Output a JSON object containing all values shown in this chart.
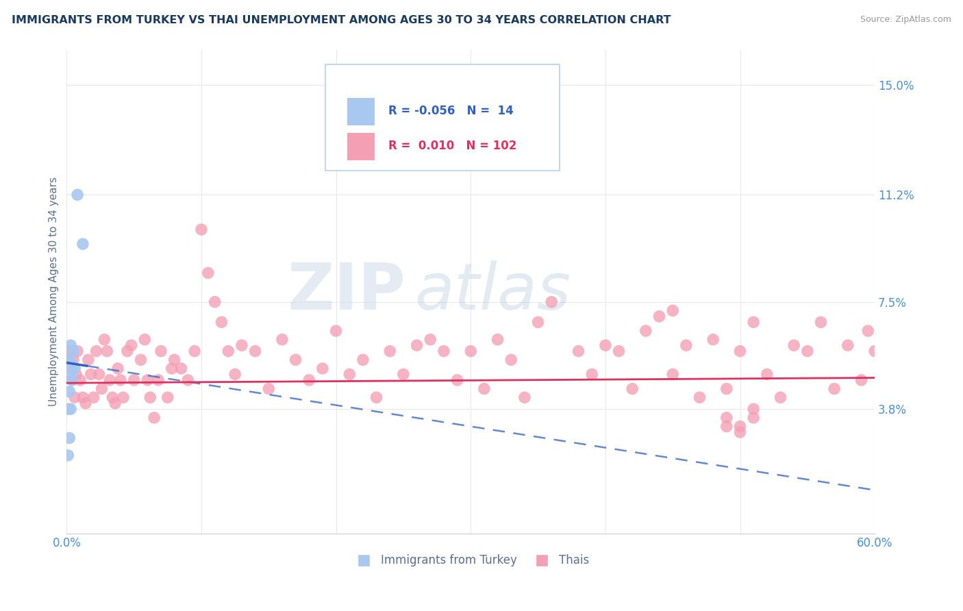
{
  "title": "IMMIGRANTS FROM TURKEY VS THAI UNEMPLOYMENT AMONG AGES 30 TO 34 YEARS CORRELATION CHART",
  "source": "Source: ZipAtlas.com",
  "ylabel": "Unemployment Among Ages 30 to 34 years",
  "xlim": [
    0.0,
    0.6
  ],
  "ylim": [
    -0.005,
    0.162
  ],
  "xtick_labels": [
    "0.0%",
    "",
    "",
    "",
    "",
    "",
    "60.0%"
  ],
  "xtick_values": [
    0.0,
    0.1,
    0.2,
    0.3,
    0.4,
    0.5,
    0.6
  ],
  "ytick_right_labels": [
    "3.8%",
    "7.5%",
    "11.2%",
    "15.0%"
  ],
  "ytick_right_values": [
    0.038,
    0.075,
    0.112,
    0.15
  ],
  "grid_color": "#e8e8e8",
  "background_color": "#ffffff",
  "turkey_color": "#a8c8f0",
  "thai_color": "#f4a0b4",
  "turkey_line_color": "#3060c0",
  "thai_line_color": "#e03060",
  "R_turkey": -0.056,
  "N_turkey": 14,
  "R_thai": 0.01,
  "N_thai": 102,
  "turkey_scatter_x": [
    0.008,
    0.012,
    0.003,
    0.005,
    0.002,
    0.004,
    0.006,
    0.003,
    0.004,
    0.002,
    0.003,
    0.001,
    0.002,
    0.001
  ],
  "turkey_scatter_y": [
    0.112,
    0.095,
    0.06,
    0.058,
    0.055,
    0.053,
    0.052,
    0.05,
    0.048,
    0.044,
    0.038,
    0.038,
    0.028,
    0.022
  ],
  "thai_scatter_x": [
    0.001,
    0.002,
    0.003,
    0.004,
    0.005,
    0.006,
    0.007,
    0.008,
    0.01,
    0.012,
    0.014,
    0.016,
    0.018,
    0.02,
    0.022,
    0.024,
    0.026,
    0.028,
    0.03,
    0.032,
    0.034,
    0.036,
    0.038,
    0.04,
    0.042,
    0.045,
    0.048,
    0.05,
    0.055,
    0.058,
    0.06,
    0.062,
    0.065,
    0.068,
    0.07,
    0.075,
    0.078,
    0.08,
    0.085,
    0.09,
    0.095,
    0.1,
    0.105,
    0.11,
    0.115,
    0.12,
    0.125,
    0.13,
    0.14,
    0.15,
    0.16,
    0.17,
    0.18,
    0.19,
    0.2,
    0.21,
    0.22,
    0.23,
    0.24,
    0.25,
    0.26,
    0.27,
    0.28,
    0.29,
    0.3,
    0.31,
    0.32,
    0.33,
    0.34,
    0.35,
    0.36,
    0.38,
    0.39,
    0.4,
    0.41,
    0.42,
    0.43,
    0.44,
    0.45,
    0.46,
    0.47,
    0.48,
    0.49,
    0.5,
    0.51,
    0.52,
    0.53,
    0.54,
    0.55,
    0.56,
    0.57,
    0.58,
    0.59,
    0.595,
    0.6,
    0.49,
    0.5,
    0.51,
    0.49,
    0.5,
    0.51,
    0.45
  ],
  "thai_scatter_y": [
    0.055,
    0.058,
    0.052,
    0.048,
    0.055,
    0.042,
    0.05,
    0.058,
    0.048,
    0.042,
    0.04,
    0.055,
    0.05,
    0.042,
    0.058,
    0.05,
    0.045,
    0.062,
    0.058,
    0.048,
    0.042,
    0.04,
    0.052,
    0.048,
    0.042,
    0.058,
    0.06,
    0.048,
    0.055,
    0.062,
    0.048,
    0.042,
    0.035,
    0.048,
    0.058,
    0.042,
    0.052,
    0.055,
    0.052,
    0.048,
    0.058,
    0.1,
    0.085,
    0.075,
    0.068,
    0.058,
    0.05,
    0.06,
    0.058,
    0.045,
    0.062,
    0.055,
    0.048,
    0.052,
    0.065,
    0.05,
    0.055,
    0.042,
    0.058,
    0.05,
    0.06,
    0.062,
    0.058,
    0.048,
    0.058,
    0.045,
    0.062,
    0.055,
    0.042,
    0.068,
    0.075,
    0.058,
    0.05,
    0.06,
    0.058,
    0.045,
    0.065,
    0.07,
    0.05,
    0.06,
    0.042,
    0.062,
    0.045,
    0.058,
    0.068,
    0.05,
    0.042,
    0.06,
    0.058,
    0.068,
    0.045,
    0.06,
    0.048,
    0.065,
    0.058,
    0.035,
    0.032,
    0.038,
    0.032,
    0.03,
    0.035,
    0.072
  ],
  "watermark_zip": "ZIP",
  "watermark_atlas": "atlas",
  "title_color": "#1a3a5c",
  "axis_label_color": "#5a7090",
  "tick_label_color": "#4a90d0",
  "legend_border_color": "#c0d8f0",
  "legend_bg_color": "#ffffff"
}
